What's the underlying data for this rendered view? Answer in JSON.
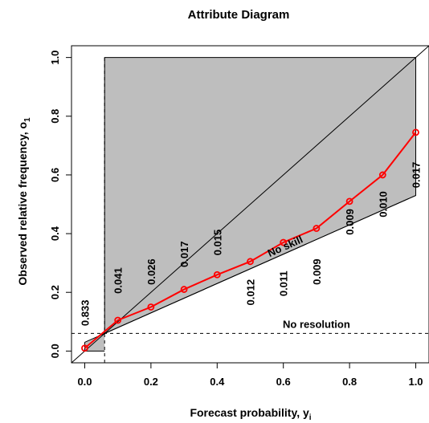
{
  "chart_data": {
    "type": "line",
    "title": "Attribute Diagram",
    "xlabel": "Forecast probability, y",
    "xlabel_sub": "i",
    "ylabel": "Observed relative frequency, o",
    "ylabel_sub": "1",
    "xlim": [
      -0.04,
      1.04
    ],
    "ylim": [
      -0.04,
      1.04
    ],
    "x_ticks": [
      "0.0",
      "0.2",
      "0.4",
      "0.6",
      "0.8",
      "1.0"
    ],
    "y_ticks": [
      "0.0",
      "0.2",
      "0.4",
      "0.6",
      "0.8",
      "1.0"
    ],
    "climatology": 0.06,
    "no_resolution_label": "No resolution",
    "no_skill_label": "No skill",
    "colors": {
      "series": "#ff0000",
      "skill_region": "#bebebe",
      "axis": "#000000"
    },
    "series": [
      {
        "x": [
          0.0,
          0.1,
          0.2,
          0.3,
          0.4,
          0.5,
          0.6,
          0.7,
          0.8,
          0.9,
          1.0
        ],
        "y": [
          0.01,
          0.105,
          0.15,
          0.21,
          0.26,
          0.305,
          0.37,
          0.418,
          0.51,
          0.6,
          0.745
        ]
      }
    ],
    "sample_freq": {
      "x": [
        0.0,
        0.1,
        0.2,
        0.3,
        0.4,
        0.5,
        0.6,
        0.7,
        0.8,
        0.9,
        1.0
      ],
      "labels": [
        "0.833",
        "0.041",
        "0.026",
        "0.017",
        "0.015",
        "0.012",
        "0.011",
        "0.009",
        "0.009",
        "0.010",
        "0.017"
      ],
      "y": [
        0.13,
        0.24,
        0.27,
        0.33,
        0.37,
        0.2,
        0.23,
        0.27,
        0.44,
        0.5,
        0.6
      ]
    }
  }
}
